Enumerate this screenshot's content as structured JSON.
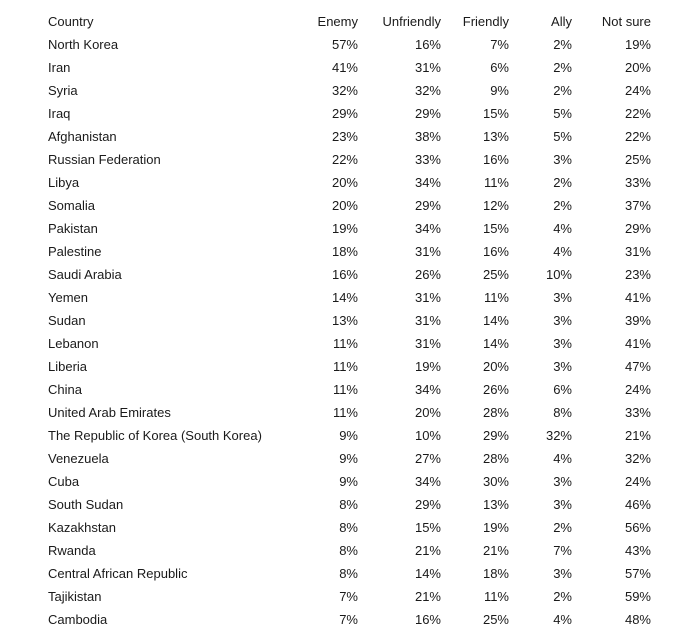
{
  "table": {
    "headers": [
      "Country",
      "Enemy",
      "Unfriendly",
      "Friendly",
      "Ally",
      "Not sure"
    ],
    "rows": [
      [
        "North Korea",
        "57%",
        "16%",
        "7%",
        "2%",
        "19%"
      ],
      [
        "Iran",
        "41%",
        "31%",
        "6%",
        "2%",
        "20%"
      ],
      [
        "Syria",
        "32%",
        "32%",
        "9%",
        "2%",
        "24%"
      ],
      [
        "Iraq",
        "29%",
        "29%",
        "15%",
        "5%",
        "22%"
      ],
      [
        "Afghanistan",
        "23%",
        "38%",
        "13%",
        "5%",
        "22%"
      ],
      [
        "Russian Federation",
        "22%",
        "33%",
        "16%",
        "3%",
        "25%"
      ],
      [
        "Libya",
        "20%",
        "34%",
        "11%",
        "2%",
        "33%"
      ],
      [
        "Somalia",
        "20%",
        "29%",
        "12%",
        "2%",
        "37%"
      ],
      [
        "Pakistan",
        "19%",
        "34%",
        "15%",
        "4%",
        "29%"
      ],
      [
        "Palestine",
        "18%",
        "31%",
        "16%",
        "4%",
        "31%"
      ],
      [
        "Saudi Arabia",
        "16%",
        "26%",
        "25%",
        "10%",
        "23%"
      ],
      [
        "Yemen",
        "14%",
        "31%",
        "11%",
        "3%",
        "41%"
      ],
      [
        "Sudan",
        "13%",
        "31%",
        "14%",
        "3%",
        "39%"
      ],
      [
        "Lebanon",
        "11%",
        "31%",
        "14%",
        "3%",
        "41%"
      ],
      [
        "Liberia",
        "11%",
        "19%",
        "20%",
        "3%",
        "47%"
      ],
      [
        "China",
        "11%",
        "34%",
        "26%",
        "6%",
        "24%"
      ],
      [
        "United Arab Emirates",
        "11%",
        "20%",
        "28%",
        "8%",
        "33%"
      ],
      [
        "The Republic of Korea (South Korea)",
        "9%",
        "10%",
        "29%",
        "32%",
        "21%"
      ],
      [
        "Venezuela",
        "9%",
        "27%",
        "28%",
        "4%",
        "32%"
      ],
      [
        "Cuba",
        "9%",
        "34%",
        "30%",
        "3%",
        "24%"
      ],
      [
        "South Sudan",
        "8%",
        "29%",
        "13%",
        "3%",
        "46%"
      ],
      [
        "Kazakhstan",
        "8%",
        "15%",
        "19%",
        "2%",
        "56%"
      ],
      [
        "Rwanda",
        "8%",
        "21%",
        "21%",
        "7%",
        "43%"
      ],
      [
        "Central African Republic",
        "8%",
        "14%",
        "18%",
        "3%",
        "57%"
      ],
      [
        "Tajikistan",
        "7%",
        "21%",
        "11%",
        "2%",
        "59%"
      ],
      [
        "Cambodia",
        "7%",
        "16%",
        "25%",
        "4%",
        "48%"
      ]
    ]
  }
}
